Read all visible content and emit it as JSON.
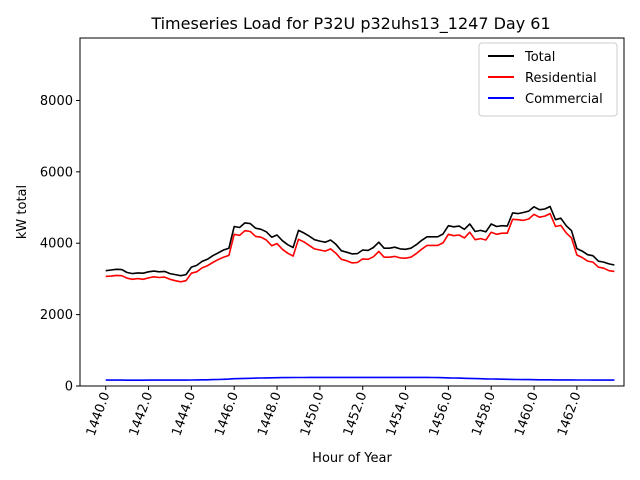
{
  "chart_data": {
    "type": "line",
    "title": "Timeseries Load for P32U p32uhs13_1247  Day 61",
    "xlabel": "Hour of Year",
    "ylabel": "kW total",
    "xlim": [
      1438.8,
      1464.2
    ],
    "ylim": [
      0,
      9750
    ],
    "xticks": [
      1440,
      1442,
      1444,
      1446,
      1448,
      1450,
      1452,
      1454,
      1456,
      1458,
      1460,
      1462
    ],
    "xtick_labels": [
      "1440.0",
      "1442.0",
      "1444.0",
      "1446.0",
      "1448.0",
      "1450.0",
      "1452.0",
      "1454.0",
      "1456.0",
      "1458.0",
      "1460.0",
      "1462.0"
    ],
    "yticks": [
      0,
      2000,
      4000,
      6000,
      8000
    ],
    "ytick_labels": [
      "0",
      "2000",
      "4000",
      "6000",
      "8000"
    ],
    "grid": false,
    "legend_position": "top-right",
    "x_start": 1440,
    "x_step": 0.25,
    "series": [
      {
        "name": "Total",
        "color": "#000000",
        "values": [
          3230,
          3250,
          3270,
          3260,
          3180,
          3150,
          3170,
          3160,
          3200,
          3220,
          3200,
          3210,
          3150,
          3120,
          3090,
          3120,
          3330,
          3380,
          3490,
          3550,
          3650,
          3730,
          3810,
          3860,
          4470,
          4440,
          4570,
          4550,
          4420,
          4390,
          4320,
          4170,
          4230,
          4070,
          3960,
          3880,
          4360,
          4290,
          4200,
          4100,
          4060,
          4030,
          4090,
          3970,
          3790,
          3750,
          3700,
          3710,
          3810,
          3800,
          3880,
          4030,
          3860,
          3860,
          3890,
          3840,
          3830,
          3860,
          3960,
          4080,
          4180,
          4180,
          4180,
          4260,
          4490,
          4460,
          4480,
          4390,
          4540,
          4330,
          4360,
          4320,
          4540,
          4470,
          4490,
          4480,
          4850,
          4830,
          4860,
          4900,
          5020,
          4940,
          4960,
          5030,
          4660,
          4700,
          4490,
          4350,
          3850,
          3780,
          3680,
          3650,
          3500,
          3470,
          3420,
          3390
        ]
      },
      {
        "name": "Residential",
        "color": "#ff0000",
        "values": [
          3070,
          3080,
          3100,
          3090,
          3020,
          2990,
          3010,
          2990,
          3030,
          3060,
          3040,
          3050,
          2990,
          2950,
          2920,
          2950,
          3160,
          3200,
          3310,
          3370,
          3460,
          3540,
          3610,
          3660,
          4250,
          4220,
          4350,
          4330,
          4190,
          4170,
          4090,
          3930,
          3990,
          3830,
          3720,
          3640,
          4110,
          4040,
          3940,
          3840,
          3810,
          3780,
          3840,
          3720,
          3550,
          3510,
          3450,
          3460,
          3560,
          3550,
          3620,
          3770,
          3610,
          3610,
          3630,
          3590,
          3580,
          3610,
          3710,
          3830,
          3940,
          3940,
          3940,
          4010,
          4250,
          4210,
          4230,
          4150,
          4310,
          4100,
          4130,
          4090,
          4310,
          4250,
          4280,
          4280,
          4670,
          4660,
          4640,
          4680,
          4810,
          4730,
          4760,
          4830,
          4470,
          4500,
          4290,
          4150,
          3670,
          3600,
          3500,
          3470,
          3330,
          3300,
          3230,
          3210
        ]
      },
      {
        "name": "Commercial",
        "color": "#0000ff",
        "values": [
          165,
          165,
          165,
          165,
          163,
          163,
          163,
          163,
          165,
          165,
          165,
          165,
          165,
          165,
          165,
          165,
          168,
          170,
          173,
          175,
          180,
          183,
          188,
          192,
          205,
          208,
          212,
          215,
          222,
          225,
          228,
          230,
          232,
          234,
          236,
          237,
          238,
          239,
          240,
          240,
          240,
          240,
          241,
          241,
          241,
          241,
          241,
          241,
          241,
          241,
          241,
          241,
          241,
          241,
          241,
          241,
          241,
          241,
          240,
          240,
          240,
          238,
          236,
          232,
          228,
          224,
          220,
          216,
          212,
          208,
          204,
          200,
          196,
          193,
          190,
          187,
          184,
          182,
          180,
          178,
          176,
          175,
          174,
          173,
          172,
          171,
          170,
          170,
          169,
          168,
          167,
          166,
          166,
          165,
          165,
          164
        ]
      }
    ]
  }
}
